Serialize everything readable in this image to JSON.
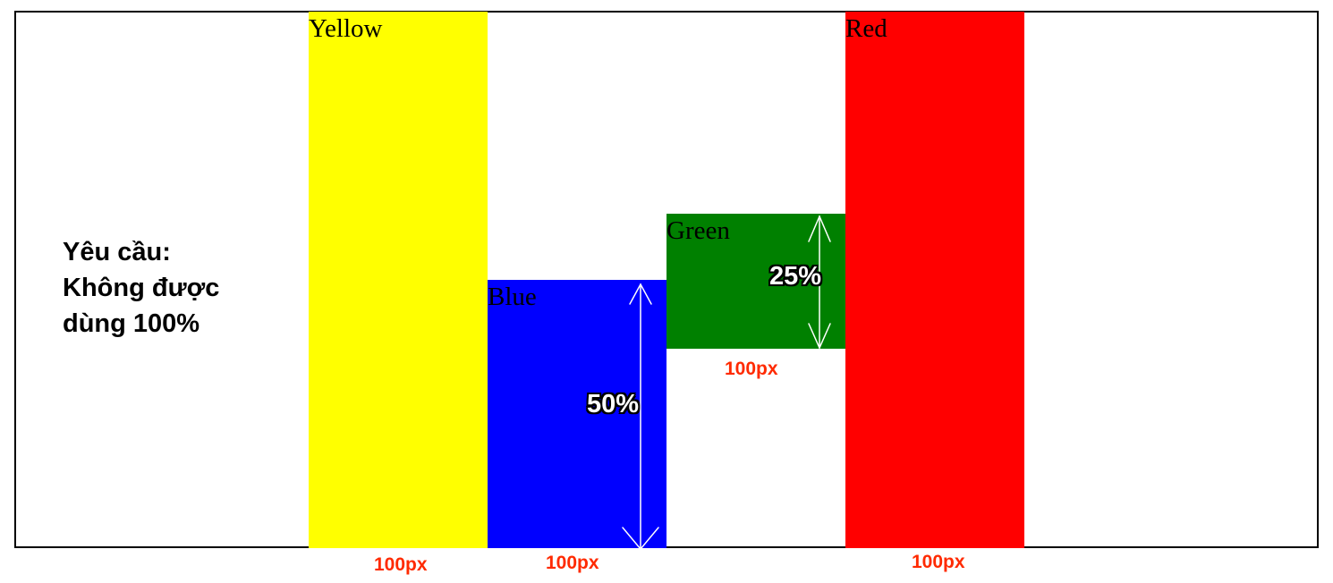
{
  "requirement": {
    "lines": [
      "Yêu cầu:",
      "Không được",
      "dùng 100%"
    ]
  },
  "boxes": {
    "yellow": {
      "label": "Yellow",
      "color": "#ffff00"
    },
    "blue": {
      "label": "Blue",
      "color": "#0000ff"
    },
    "green": {
      "label": "Green",
      "color": "#008000"
    },
    "red": {
      "label": "Red",
      "color": "#ff0000"
    }
  },
  "annotations": {
    "blue_height": "50%",
    "green_height": "25%",
    "width_yellow": "100px",
    "width_blue": "100px",
    "width_green": "100px",
    "width_red": "100px"
  }
}
